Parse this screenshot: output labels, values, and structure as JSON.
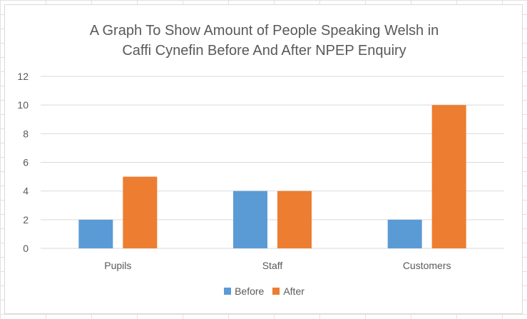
{
  "chart_data": {
    "type": "bar",
    "title_lines": [
      "A Graph To Show Amount of People Speaking Welsh in",
      "Caffi Cynefin Before And After NPEP Enquiry"
    ],
    "categories": [
      "Pupils",
      "Staff",
      "Customers"
    ],
    "series": [
      {
        "name": "Before",
        "values": [
          2,
          4,
          2
        ],
        "color": "#5b9bd5"
      },
      {
        "name": "After",
        "values": [
          5,
          4,
          10
        ],
        "color": "#ed7d31"
      }
    ],
    "ylim": [
      0,
      12
    ],
    "yticks": [
      0,
      2,
      4,
      6,
      8,
      10,
      12
    ],
    "grid": true,
    "legend_position": "bottom"
  }
}
